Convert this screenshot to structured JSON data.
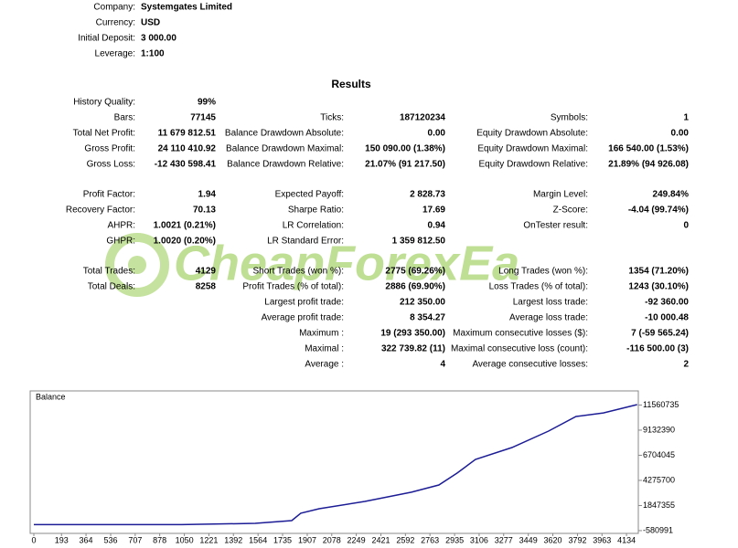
{
  "header": [
    {
      "label": "Company:",
      "value": "Systemgates Limited"
    },
    {
      "label": "Currency:",
      "value": "USD"
    },
    {
      "label": "Initial Deposit:",
      "value": "3 000.00"
    },
    {
      "label": "Leverage:",
      "value": "1:100"
    }
  ],
  "results": {
    "title": "Results",
    "sections": [
      [
        [
          {
            "label": "History Quality:",
            "value": "99%"
          },
          null,
          null
        ],
        [
          {
            "label": "Bars:",
            "value": "77145"
          },
          {
            "label": "Ticks:",
            "value": "187120234"
          },
          {
            "label": "Symbols:",
            "value": "1"
          }
        ],
        [
          {
            "label": "Total Net Profit:",
            "value": "11 679 812.51"
          },
          {
            "label": "Balance Drawdown Absolute:",
            "value": "0.00"
          },
          {
            "label": "Equity Drawdown Absolute:",
            "value": "0.00"
          }
        ],
        [
          {
            "label": "Gross Profit:",
            "value": "24 110 410.92"
          },
          {
            "label": "Balance Drawdown Maximal:",
            "value": "150 090.00 (1.38%)"
          },
          {
            "label": "Equity Drawdown Maximal:",
            "value": "166 540.00 (1.53%)"
          }
        ],
        [
          {
            "label": "Gross Loss:",
            "value": "-12 430 598.41"
          },
          {
            "label": "Balance Drawdown Relative:",
            "value": "21.07% (91 217.50)"
          },
          {
            "label": "Equity Drawdown Relative:",
            "value": "21.89% (94 926.08)"
          }
        ]
      ],
      [
        [
          {
            "label": "Profit Factor:",
            "value": "1.94"
          },
          {
            "label": "Expected Payoff:",
            "value": "2 828.73"
          },
          {
            "label": "Margin Level:",
            "value": "249.84%"
          }
        ],
        [
          {
            "label": "Recovery Factor:",
            "value": "70.13"
          },
          {
            "label": "Sharpe Ratio:",
            "value": "17.69"
          },
          {
            "label": "Z-Score:",
            "value": "-4.04 (99.74%)"
          }
        ],
        [
          {
            "label": "AHPR:",
            "value": "1.0021 (0.21%)"
          },
          {
            "label": "LR Correlation:",
            "value": "0.94"
          },
          {
            "label": "OnTester result:",
            "value": "0"
          }
        ],
        [
          {
            "label": "GHPR:",
            "value": "1.0020 (0.20%)"
          },
          {
            "label": "LR Standard Error:",
            "value": "1 359 812.50"
          },
          null
        ]
      ],
      [
        [
          {
            "label": "Total Trades:",
            "value": "4129"
          },
          {
            "label": "Short Trades (won %):",
            "value": "2775 (69.26%)"
          },
          {
            "label": "Long Trades (won %):",
            "value": "1354 (71.20%)"
          }
        ],
        [
          {
            "label": "Total Deals:",
            "value": "8258"
          },
          {
            "label": "Profit Trades (% of total):",
            "value": "2886 (69.90%)"
          },
          {
            "label": "Loss Trades (% of total):",
            "value": "1243 (30.10%)"
          }
        ],
        [
          null,
          {
            "label": "Largest profit trade:",
            "value": "212 350.00"
          },
          {
            "label": "Largest loss trade:",
            "value": "-92 360.00"
          }
        ],
        [
          null,
          {
            "label": "Average profit trade:",
            "value": "8 354.27"
          },
          {
            "label": "Average loss trade:",
            "value": "-10 000.48"
          }
        ],
        [
          null,
          {
            "label": "Maximum :",
            "value": "19 (293 350.00)"
          },
          {
            "label": "Maximum consecutive losses ($):",
            "value": "7 (-59 565.24)"
          }
        ],
        [
          null,
          {
            "label": "Maximal :",
            "value": "322 739.82 (11)"
          },
          {
            "label": "Maximal consecutive loss (count):",
            "value": "-116 500.00 (3)"
          }
        ],
        [
          null,
          {
            "label": "Average :",
            "value": "4"
          },
          {
            "label": "Average consecutive losses:",
            "value": "2"
          }
        ]
      ]
    ]
  },
  "watermark": "CheapForexEa",
  "chart_data": {
    "type": "line",
    "series": [
      {
        "name": "Balance",
        "color": "#1c1c96",
        "x": [
          0,
          1033,
          1544,
          1799,
          1862,
          1990,
          2309,
          2634,
          2825,
          2952,
          3080,
          3335,
          3590,
          3782,
          3973,
          4208
        ],
        "values": [
          3000,
          3000,
          120000,
          390000,
          1100000,
          1540000,
          2240000,
          3130000,
          3830000,
          4980000,
          6300000,
          7450000,
          9040000,
          10450000,
          10800000,
          11600000
        ]
      }
    ],
    "xlim": [
      0,
      4210
    ],
    "xticks": [
      0,
      193,
      364,
      536,
      707,
      878,
      1050,
      1221,
      1392,
      1564,
      1735,
      1907,
      2078,
      2249,
      2421,
      2592,
      2763,
      2935,
      3106,
      3277,
      3449,
      3620,
      3792,
      3963,
      4134
    ],
    "ylim": [
      -760000,
      12750000
    ],
    "yticks": [
      -580991,
      1847355,
      4275700,
      6704045,
      9132390,
      11560735
    ],
    "grid": false
  }
}
